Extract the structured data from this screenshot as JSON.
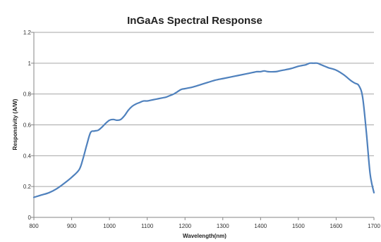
{
  "chart_data": {
    "type": "line",
    "title": "InGaAs Spectral Response",
    "xlabel": "Wavelength(nm)",
    "ylabel": "Responsivity (A/W)",
    "xlim": [
      800,
      1700
    ],
    "ylim": [
      0,
      1.2
    ],
    "x_ticks": [
      800,
      900,
      1000,
      1100,
      1200,
      1300,
      1400,
      1500,
      1600,
      1700
    ],
    "y_ticks": [
      0,
      0.2,
      0.4,
      0.6,
      0.8,
      1,
      1.2
    ],
    "x_tick_labels": [
      "800",
      "900",
      "1000",
      "1100",
      "1200",
      "1300",
      "1400",
      "1500",
      "1600",
      "1700"
    ],
    "y_tick_labels": [
      "0",
      "0.2",
      "0.4",
      "0.6",
      "0.8",
      "1",
      "1.2"
    ],
    "grid": "horizontal",
    "legend": "none",
    "line_color": "#4f81bd",
    "series": [
      {
        "x": [
          800,
          820,
          840,
          860,
          880,
          900,
          920,
          930,
          940,
          950,
          960,
          970,
          980,
          990,
          1000,
          1010,
          1020,
          1030,
          1040,
          1050,
          1060,
          1070,
          1080,
          1090,
          1100,
          1110,
          1120,
          1130,
          1140,
          1150,
          1160,
          1170,
          1180,
          1190,
          1200,
          1220,
          1240,
          1260,
          1280,
          1300,
          1320,
          1340,
          1360,
          1380,
          1390,
          1400,
          1410,
          1420,
          1440,
          1450,
          1460,
          1480,
          1500,
          1510,
          1520,
          1530,
          1540,
          1550,
          1560,
          1570,
          1580,
          1600,
          1620,
          1640,
          1650,
          1660,
          1670,
          1680,
          1690,
          1700
        ],
        "y": [
          0.13,
          0.145,
          0.16,
          0.185,
          0.22,
          0.26,
          0.31,
          0.38,
          0.47,
          0.55,
          0.56,
          0.565,
          0.585,
          0.61,
          0.63,
          0.635,
          0.63,
          0.635,
          0.66,
          0.695,
          0.72,
          0.735,
          0.745,
          0.755,
          0.755,
          0.76,
          0.765,
          0.77,
          0.775,
          0.78,
          0.79,
          0.8,
          0.815,
          0.83,
          0.835,
          0.845,
          0.86,
          0.875,
          0.89,
          0.9,
          0.91,
          0.92,
          0.93,
          0.94,
          0.945,
          0.945,
          0.95,
          0.945,
          0.945,
          0.95,
          0.955,
          0.965,
          0.98,
          0.985,
          0.99,
          1.0,
          1.0,
          1.0,
          0.99,
          0.98,
          0.97,
          0.955,
          0.925,
          0.885,
          0.87,
          0.855,
          0.78,
          0.55,
          0.28,
          0.16
        ]
      }
    ]
  }
}
